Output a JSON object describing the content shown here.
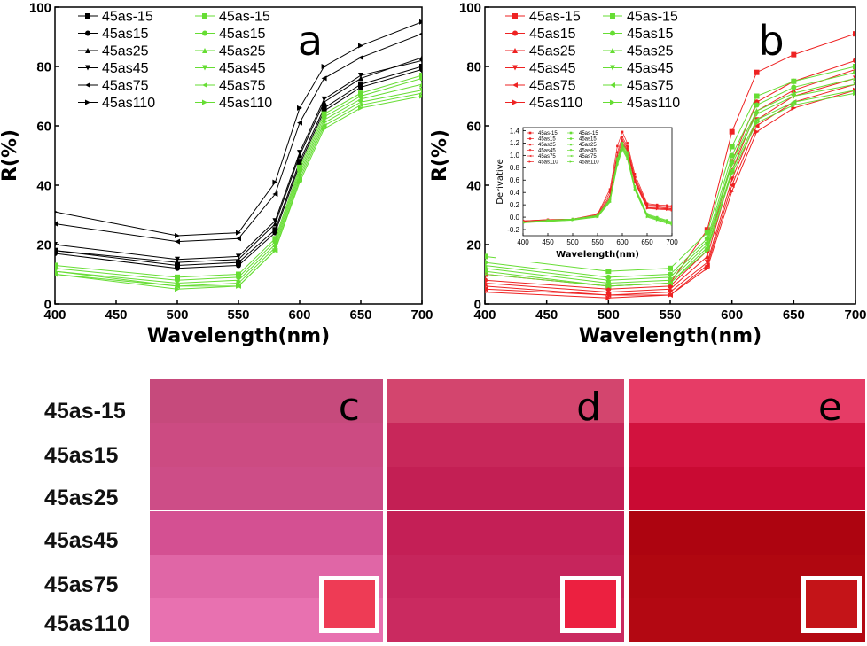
{
  "chart_data": [
    {
      "panel": "a",
      "type": "line",
      "xlabel": "Wavelength(nm)",
      "ylabel": "R(%)",
      "xlim": [
        400,
        700
      ],
      "ylim": [
        0,
        100
      ],
      "xticks": [
        400,
        450,
        500,
        550,
        600,
        650,
        700
      ],
      "yticks": [
        0,
        20,
        40,
        60,
        80,
        100
      ],
      "legend_position": "top-left",
      "x": [
        400,
        500,
        550,
        580,
        600,
        620,
        650,
        700
      ],
      "series": [
        {
          "name": "45as-15",
          "marker": "square",
          "color": "#000000",
          "values": [
            18,
            13,
            14,
            25,
            48,
            66,
            74,
            80
          ]
        },
        {
          "name": "45as15",
          "marker": "circle",
          "color": "#000000",
          "values": [
            17,
            12,
            13,
            24,
            47,
            65,
            73,
            79
          ]
        },
        {
          "name": "45as25",
          "marker": "triangle-up",
          "color": "#000000",
          "values": [
            18,
            14,
            15,
            27,
            50,
            68,
            76,
            83
          ]
        },
        {
          "name": "45as45",
          "marker": "triangle-down",
          "color": "#000000",
          "values": [
            20,
            15,
            16,
            28,
            51,
            69,
            77,
            82
          ]
        },
        {
          "name": "45as75",
          "marker": "triangle-left",
          "color": "#000000",
          "values": [
            27,
            21,
            22,
            37,
            61,
            76,
            83,
            91
          ]
        },
        {
          "name": "45as110",
          "marker": "triangle-right",
          "color": "#000000",
          "values": [
            31,
            23,
            24,
            41,
            66,
            80,
            87,
            95
          ]
        },
        {
          "name": "45as-15",
          "marker": "square",
          "color": "#66dd33",
          "values": [
            13,
            9,
            10,
            22,
            46,
            64,
            71,
            77
          ]
        },
        {
          "name": "45as15",
          "marker": "circle",
          "color": "#66dd33",
          "values": [
            12,
            8,
            9,
            21,
            45,
            63,
            70,
            76
          ]
        },
        {
          "name": "45as25",
          "marker": "triangle-up",
          "color": "#66dd33",
          "values": [
            11,
            7,
            8,
            20,
            44,
            62,
            69,
            74
          ]
        },
        {
          "name": "45as45",
          "marker": "triangle-down",
          "color": "#66dd33",
          "values": [
            11,
            6,
            7,
            19,
            43,
            61,
            68,
            72
          ]
        },
        {
          "name": "45as75",
          "marker": "triangle-left",
          "color": "#66dd33",
          "values": [
            10,
            6,
            6,
            18,
            42,
            60,
            67,
            71
          ]
        },
        {
          "name": "45as110",
          "marker": "triangle-right",
          "color": "#66dd33",
          "values": [
            10,
            5,
            6,
            18,
            41,
            59,
            66,
            70
          ]
        }
      ]
    },
    {
      "panel": "b",
      "type": "line",
      "xlabel": "Wavelength(nm)",
      "ylabel": "R(%)",
      "xlim": [
        400,
        700
      ],
      "ylim": [
        0,
        100
      ],
      "xticks": [
        400,
        450,
        500,
        550,
        600,
        650,
        700
      ],
      "yticks": [
        0,
        20,
        40,
        60,
        80,
        100
      ],
      "legend_position": "top-left",
      "x": [
        400,
        500,
        550,
        580,
        600,
        620,
        650,
        700
      ],
      "series": [
        {
          "name": "45as-15",
          "marker": "square",
          "color": "#ee2222",
          "values": [
            10,
            6,
            7,
            25,
            58,
            78,
            84,
            91
          ]
        },
        {
          "name": "45as15",
          "marker": "circle",
          "color": "#ee2222",
          "values": [
            8,
            5,
            6,
            18,
            48,
            68,
            75,
            82
          ]
        },
        {
          "name": "45as25",
          "marker": "triangle-up",
          "color": "#ee2222",
          "values": [
            7,
            4,
            5,
            16,
            45,
            65,
            72,
            79
          ]
        },
        {
          "name": "45as45",
          "marker": "triangle-down",
          "color": "#ee2222",
          "values": [
            6,
            3,
            4,
            14,
            42,
            62,
            70,
            76
          ]
        },
        {
          "name": "45as75",
          "marker": "triangle-left",
          "color": "#ee2222",
          "values": [
            5,
            3,
            3,
            13,
            40,
            60,
            68,
            74
          ]
        },
        {
          "name": "45as110",
          "marker": "triangle-right",
          "color": "#ee2222",
          "values": [
            4,
            2,
            3,
            12,
            38,
            58,
            66,
            72
          ]
        },
        {
          "name": "45as-15",
          "marker": "square",
          "color": "#66dd33",
          "values": [
            16,
            11,
            12,
            24,
            53,
            70,
            75,
            80
          ]
        },
        {
          "name": "45as15",
          "marker": "circle",
          "color": "#66dd33",
          "values": [
            14,
            9,
            10,
            22,
            50,
            67,
            73,
            78
          ]
        },
        {
          "name": "45as25",
          "marker": "triangle-up",
          "color": "#66dd33",
          "values": [
            13,
            8,
            9,
            21,
            48,
            65,
            71,
            76
          ]
        },
        {
          "name": "45as45",
          "marker": "triangle-down",
          "color": "#66dd33",
          "values": [
            12,
            7,
            8,
            20,
            47,
            64,
            70,
            74
          ]
        },
        {
          "name": "45as75",
          "marker": "triangle-left",
          "color": "#66dd33",
          "values": [
            11,
            6,
            7,
            19,
            45,
            62,
            68,
            72
          ]
        },
        {
          "name": "45as110",
          "marker": "triangle-right",
          "color": "#66dd33",
          "values": [
            10,
            6,
            7,
            18,
            44,
            61,
            67,
            71
          ]
        }
      ]
    },
    {
      "panel": "b-inset",
      "type": "line",
      "xlabel": "Wavelength(nm)",
      "ylabel": "Derivative",
      "xlim": [
        400,
        700
      ],
      "ylim": [
        -0.3,
        1.45
      ],
      "xticks": [
        400,
        450,
        500,
        550,
        600,
        650,
        700
      ],
      "yticks": [
        -0.2,
        0.0,
        0.2,
        0.4,
        0.6,
        0.8,
        1.0,
        1.2,
        1.4
      ],
      "legend_position": "top-left",
      "x": [
        400,
        450,
        500,
        550,
        575,
        590,
        600,
        610,
        625,
        650,
        670,
        690,
        700
      ],
      "series": [
        {
          "name": "45as-15",
          "marker": "square",
          "color": "#ee2222",
          "values": [
            -0.06,
            -0.04,
            -0.03,
            0.05,
            0.45,
            1.15,
            1.38,
            1.2,
            0.7,
            0.22,
            0.2,
            0.19,
            0.18
          ]
        },
        {
          "name": "45as15",
          "marker": "circle",
          "color": "#ee2222",
          "values": [
            -0.06,
            -0.04,
            -0.03,
            0.04,
            0.4,
            1.05,
            1.3,
            1.15,
            0.65,
            0.2,
            0.19,
            0.17,
            0.16
          ]
        },
        {
          "name": "45as25",
          "marker": "triangle-up",
          "color": "#ee2222",
          "values": [
            -0.07,
            -0.05,
            -0.03,
            0.03,
            0.35,
            1.0,
            1.26,
            1.12,
            0.62,
            0.18,
            0.17,
            0.15,
            0.14
          ]
        },
        {
          "name": "45as45",
          "marker": "triangle-down",
          "color": "#ee2222",
          "values": [
            -0.07,
            -0.05,
            -0.04,
            0.02,
            0.32,
            0.95,
            1.22,
            1.1,
            0.6,
            0.16,
            0.15,
            0.14,
            0.13
          ]
        },
        {
          "name": "45as75",
          "marker": "triangle-left",
          "color": "#ee2222",
          "values": [
            -0.08,
            -0.06,
            -0.04,
            0.02,
            0.3,
            0.92,
            1.2,
            1.08,
            0.58,
            0.15,
            0.14,
            0.13,
            0.12
          ]
        },
        {
          "name": "45as110",
          "marker": "triangle-right",
          "color": "#ee2222",
          "values": [
            -0.08,
            -0.06,
            -0.04,
            0.01,
            0.28,
            0.9,
            1.18,
            1.06,
            0.57,
            0.14,
            0.13,
            0.12,
            0.11
          ]
        },
        {
          "name": "45as-15",
          "marker": "square",
          "color": "#66dd33",
          "values": [
            -0.08,
            -0.05,
            -0.03,
            0.03,
            0.3,
            0.95,
            1.2,
            1.05,
            0.5,
            0.05,
            0.0,
            -0.05,
            -0.08
          ]
        },
        {
          "name": "45as15",
          "marker": "circle",
          "color": "#66dd33",
          "values": [
            -0.08,
            -0.05,
            -0.03,
            0.02,
            0.28,
            0.92,
            1.17,
            1.02,
            0.48,
            0.04,
            -0.01,
            -0.06,
            -0.09
          ]
        },
        {
          "name": "45as25",
          "marker": "triangle-up",
          "color": "#66dd33",
          "values": [
            -0.08,
            -0.06,
            -0.04,
            0.02,
            0.27,
            0.9,
            1.15,
            1.0,
            0.47,
            0.03,
            -0.02,
            -0.07,
            -0.1
          ]
        },
        {
          "name": "45as45",
          "marker": "triangle-down",
          "color": "#66dd33",
          "values": [
            -0.09,
            -0.06,
            -0.04,
            0.01,
            0.26,
            0.88,
            1.13,
            0.98,
            0.46,
            0.02,
            -0.03,
            -0.08,
            -0.11
          ]
        },
        {
          "name": "45as75",
          "marker": "triangle-left",
          "color": "#66dd33",
          "values": [
            -0.09,
            -0.06,
            -0.04,
            0.01,
            0.25,
            0.86,
            1.11,
            0.96,
            0.45,
            0.01,
            -0.04,
            -0.09,
            -0.12
          ]
        },
        {
          "name": "45as110",
          "marker": "triangle-right",
          "color": "#66dd33",
          "values": [
            -0.09,
            -0.07,
            -0.05,
            0.0,
            0.24,
            0.84,
            1.09,
            0.94,
            0.44,
            0.0,
            -0.05,
            -0.1,
            -0.12
          ]
        }
      ]
    }
  ],
  "swatches": {
    "row_labels": [
      "45as-15",
      "45as15",
      "45as25",
      "45as45",
      "45as75",
      "45as110"
    ],
    "panels": [
      {
        "letter": "c",
        "colors": [
          "#c64a7c",
          "#cc4b82",
          "#cd4d87",
          "#d45092",
          "#e066a6",
          "#e871b0"
        ],
        "inset_color": "#ee3b55"
      },
      {
        "letter": "d",
        "colors": [
          "#d3456e",
          "#c8275a",
          "#c31f54",
          "#c41f56",
          "#c6255c",
          "#ca2a60"
        ],
        "inset_color": "#ec2040"
      },
      {
        "letter": "e",
        "colors": [
          "#e63c66",
          "#d2123e",
          "#c90a33",
          "#ad0410",
          "#b00710",
          "#b30812"
        ],
        "inset_color": "#c41418"
      }
    ]
  }
}
